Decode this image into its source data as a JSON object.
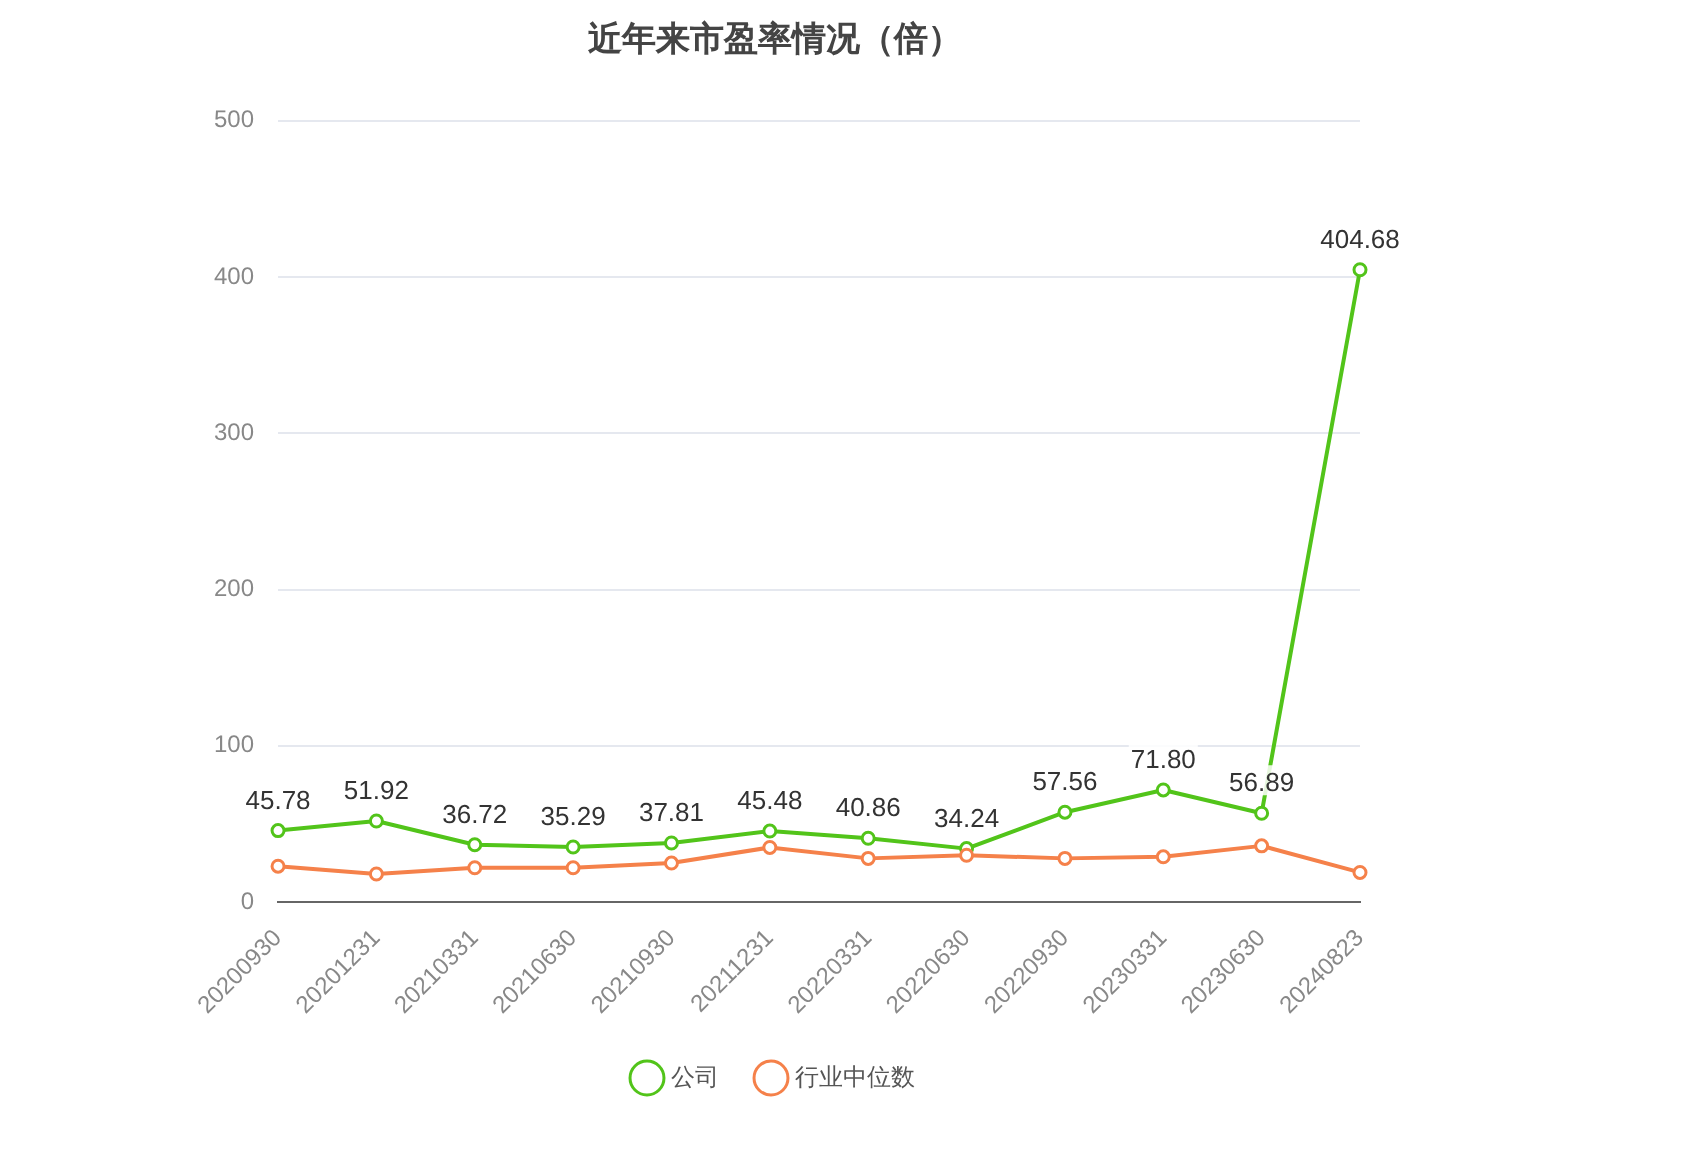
{
  "chart_data": {
    "type": "line",
    "title": "近年来市盈率情况（倍）",
    "categories": [
      "20200930",
      "20201231",
      "20210331",
      "20210630",
      "20210930",
      "20211231",
      "20220331",
      "20220630",
      "20220930",
      "20230331",
      "20230630",
      "20240823"
    ],
    "series": [
      {
        "name": "公司",
        "color": "#52c41a",
        "values": [
          45.78,
          51.92,
          36.72,
          35.29,
          37.81,
          45.48,
          40.86,
          34.24,
          57.56,
          71.8,
          56.89,
          404.68
        ],
        "value_labels": [
          "45.78",
          "51.92",
          "36.72",
          "35.29",
          "37.81",
          "45.48",
          "40.86",
          "34.24",
          "57.56",
          "71.80",
          "56.89",
          "404.68"
        ]
      },
      {
        "name": "行业中位数",
        "color": "#f5814a",
        "values": [
          23,
          18,
          22,
          22,
          25,
          35,
          28,
          30,
          28,
          29,
          36,
          19
        ]
      }
    ],
    "ylim": [
      0,
      500
    ],
    "yticks": [
      0,
      100,
      200,
      300,
      400,
      500
    ],
    "grid": "y",
    "legend": "bottom",
    "marker": "circle",
    "line_style": "solid"
  }
}
